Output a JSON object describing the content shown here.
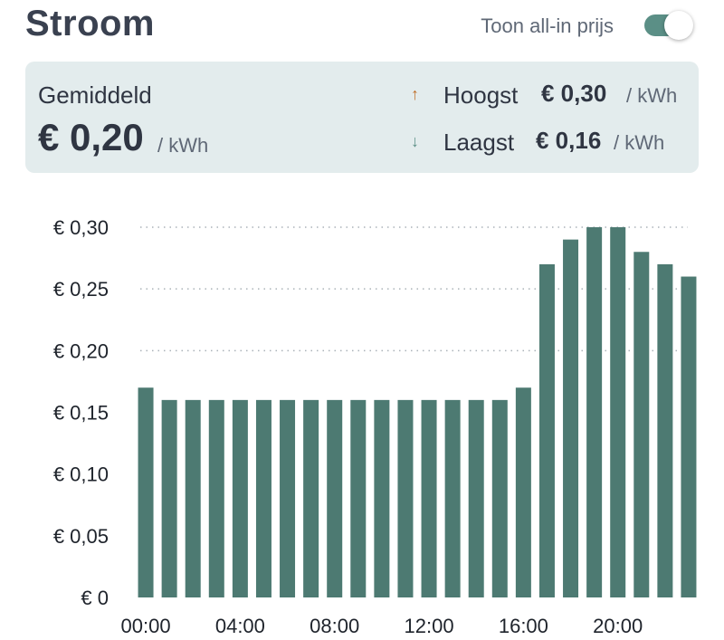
{
  "header": {
    "title": "Stroom",
    "toggle_label": "Toon all-in prijs",
    "toggle_on": true
  },
  "summary": {
    "average_label": "Gemiddeld",
    "average_value": "€ 0,20",
    "unit": "/ kWh",
    "highest_label": "Hoogst",
    "highest_value": "€ 0,30",
    "lowest_label": "Laagst",
    "lowest_value": "€ 0,16",
    "highest_icon": "arrow-up-icon",
    "lowest_icon": "arrow-down-icon"
  },
  "colors": {
    "bar": "#4d7a72",
    "accent": "#5b8f86",
    "summary_bg": "#e3eced",
    "highest_arrow": "#c0702a",
    "lowest_arrow": "#5b8f86",
    "grid": "#aab2b8"
  },
  "chart_data": {
    "type": "bar",
    "x": [
      "00:00",
      "01:00",
      "02:00",
      "03:00",
      "04:00",
      "05:00",
      "06:00",
      "07:00",
      "08:00",
      "09:00",
      "10:00",
      "11:00",
      "12:00",
      "13:00",
      "14:00",
      "15:00",
      "16:00",
      "17:00",
      "18:00",
      "19:00",
      "20:00",
      "21:00",
      "22:00",
      "23:00"
    ],
    "values": [
      0.17,
      0.16,
      0.16,
      0.16,
      0.16,
      0.16,
      0.16,
      0.16,
      0.16,
      0.16,
      0.16,
      0.16,
      0.16,
      0.16,
      0.16,
      0.16,
      0.17,
      0.27,
      0.29,
      0.3,
      0.3,
      0.28,
      0.27,
      0.26
    ],
    "x_tick_labels": [
      "00:00",
      "04:00",
      "08:00",
      "12:00",
      "16:00",
      "20:00"
    ],
    "y_tick_labels": [
      "€ 0",
      "€ 0,05",
      "€ 0,10",
      "€ 0,15",
      "€ 0,20",
      "€ 0,25",
      "€ 0,30"
    ],
    "y_ticks": [
      0,
      0.05,
      0.1,
      0.15,
      0.2,
      0.25,
      0.3
    ],
    "gridlines_at": [
      0.2,
      0.25,
      0.3
    ],
    "ylim": [
      0,
      0.3
    ],
    "grid": "dotted",
    "title": "",
    "xlabel": "",
    "ylabel": ""
  }
}
